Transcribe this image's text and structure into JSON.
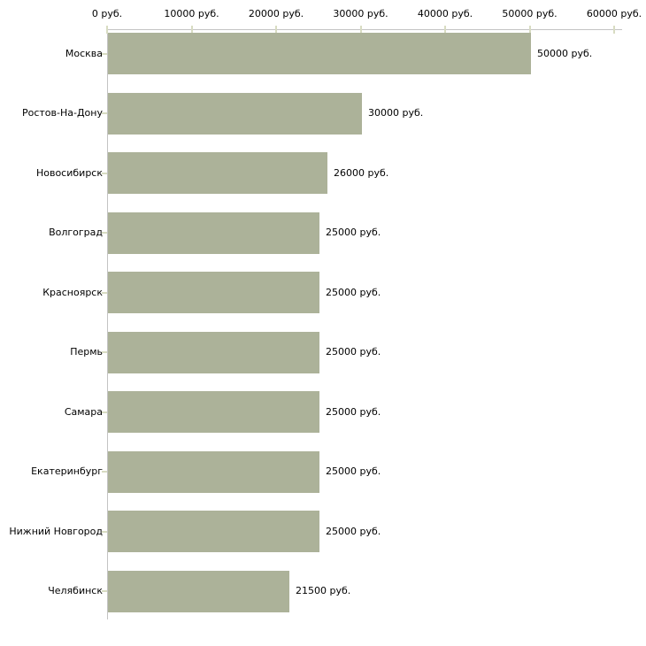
{
  "chart_data": {
    "type": "bar",
    "orientation": "horizontal",
    "title": "",
    "categories": [
      "Москва",
      "Ростов-На-Дону",
      "Новосибирск",
      "Волгоград",
      "Красноярск",
      "Пермь",
      "Самара",
      "Екатеринбург",
      "Нижний Новгород",
      "Челябинск"
    ],
    "values": [
      50000,
      30000,
      26000,
      25000,
      25000,
      25000,
      25000,
      25000,
      25000,
      21500
    ],
    "value_labels": [
      "50000 руб.",
      "30000 руб.",
      "26000 руб.",
      "25000 руб.",
      "25000 руб.",
      "25000 руб.",
      "25000 руб.",
      "25000 руб.",
      "25000 руб.",
      "21500 руб."
    ],
    "x_axis": {
      "position": "top",
      "unit": "руб.",
      "range": [
        0,
        60000
      ],
      "tick_values": [
        0,
        10000,
        20000,
        30000,
        40000,
        50000,
        60000
      ],
      "tick_labels": [
        "0 руб.",
        "10000 руб.",
        "20000 руб.",
        "30000 руб.",
        "40000 руб.",
        "50000 руб.",
        "60000 руб."
      ]
    },
    "grid": false,
    "legend": false,
    "colors": {
      "bar": "#acb299",
      "tick": "#d8dcc2",
      "axis": "#c4c4c4",
      "text": "#000000",
      "background": "#ffffff"
    }
  }
}
